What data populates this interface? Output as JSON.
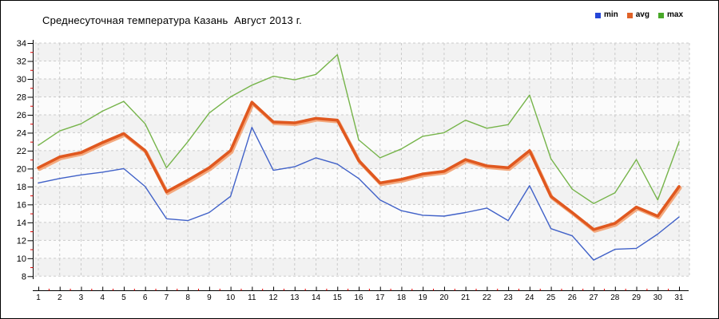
{
  "legend": [
    {
      "label": "min",
      "swatch": "#2446d8"
    },
    {
      "label": "avg",
      "swatch": "#e06228"
    },
    {
      "label": "max",
      "swatch": "#48a828"
    }
  ],
  "chart_data": {
    "type": "line",
    "title": "Среднесуточная температура Казань  Август 2013 г.",
    "x": [
      1,
      2,
      3,
      4,
      5,
      6,
      7,
      8,
      9,
      10,
      11,
      12,
      13,
      14,
      15,
      16,
      17,
      18,
      19,
      20,
      21,
      22,
      23,
      24,
      25,
      26,
      27,
      28,
      29,
      30,
      31
    ],
    "yticks": [
      8,
      10,
      12,
      14,
      16,
      18,
      20,
      22,
      24,
      26,
      28,
      30,
      32,
      34
    ],
    "ylim": [
      8,
      34
    ],
    "grid": true,
    "legend_position": "top-right",
    "series": [
      {
        "name": "min",
        "color": "#4061c8",
        "width": 1.4,
        "values": [
          18.4,
          18.9,
          19.3,
          19.6,
          20.0,
          18.0,
          14.4,
          14.2,
          15.1,
          16.9,
          24.6,
          19.8,
          20.2,
          21.2,
          20.5,
          18.9,
          16.5,
          15.3,
          14.8,
          14.7,
          15.1,
          15.6,
          14.2,
          18.1,
          13.3,
          12.5,
          9.8,
          11.0,
          11.1,
          12.7,
          14.6
        ]
      },
      {
        "name": "avg",
        "color": "#e0581f",
        "width": 3.6,
        "halo": "#f3a97e",
        "values": [
          20.1,
          21.3,
          21.8,
          22.9,
          23.9,
          22.0,
          17.4,
          18.7,
          20.1,
          22.0,
          27.4,
          25.2,
          25.1,
          25.6,
          25.4,
          20.9,
          18.4,
          18.8,
          19.4,
          19.7,
          21.0,
          20.3,
          20.1,
          22.0,
          16.9,
          15.1,
          13.2,
          13.9,
          15.7,
          14.7,
          18.0
        ]
      },
      {
        "name": "max",
        "color": "#76b44a",
        "width": 1.4,
        "values": [
          22.6,
          24.2,
          25.0,
          26.4,
          27.5,
          25.0,
          20.1,
          23.0,
          26.2,
          28.0,
          29.3,
          30.3,
          29.9,
          30.5,
          32.7,
          23.2,
          21.2,
          22.2,
          23.6,
          24.0,
          25.4,
          24.5,
          24.9,
          28.2,
          21.1,
          17.7,
          16.1,
          17.3,
          21.0,
          16.5,
          23.0
        ]
      }
    ],
    "style": {
      "band_dark": "#f2f2f2",
      "band_light": "#fbfbfb",
      "grid_color": "#cbcbcb",
      "axis_color": "#000000",
      "minor_tick_color": "#e00000",
      "tick_label_color": "#000000"
    }
  }
}
